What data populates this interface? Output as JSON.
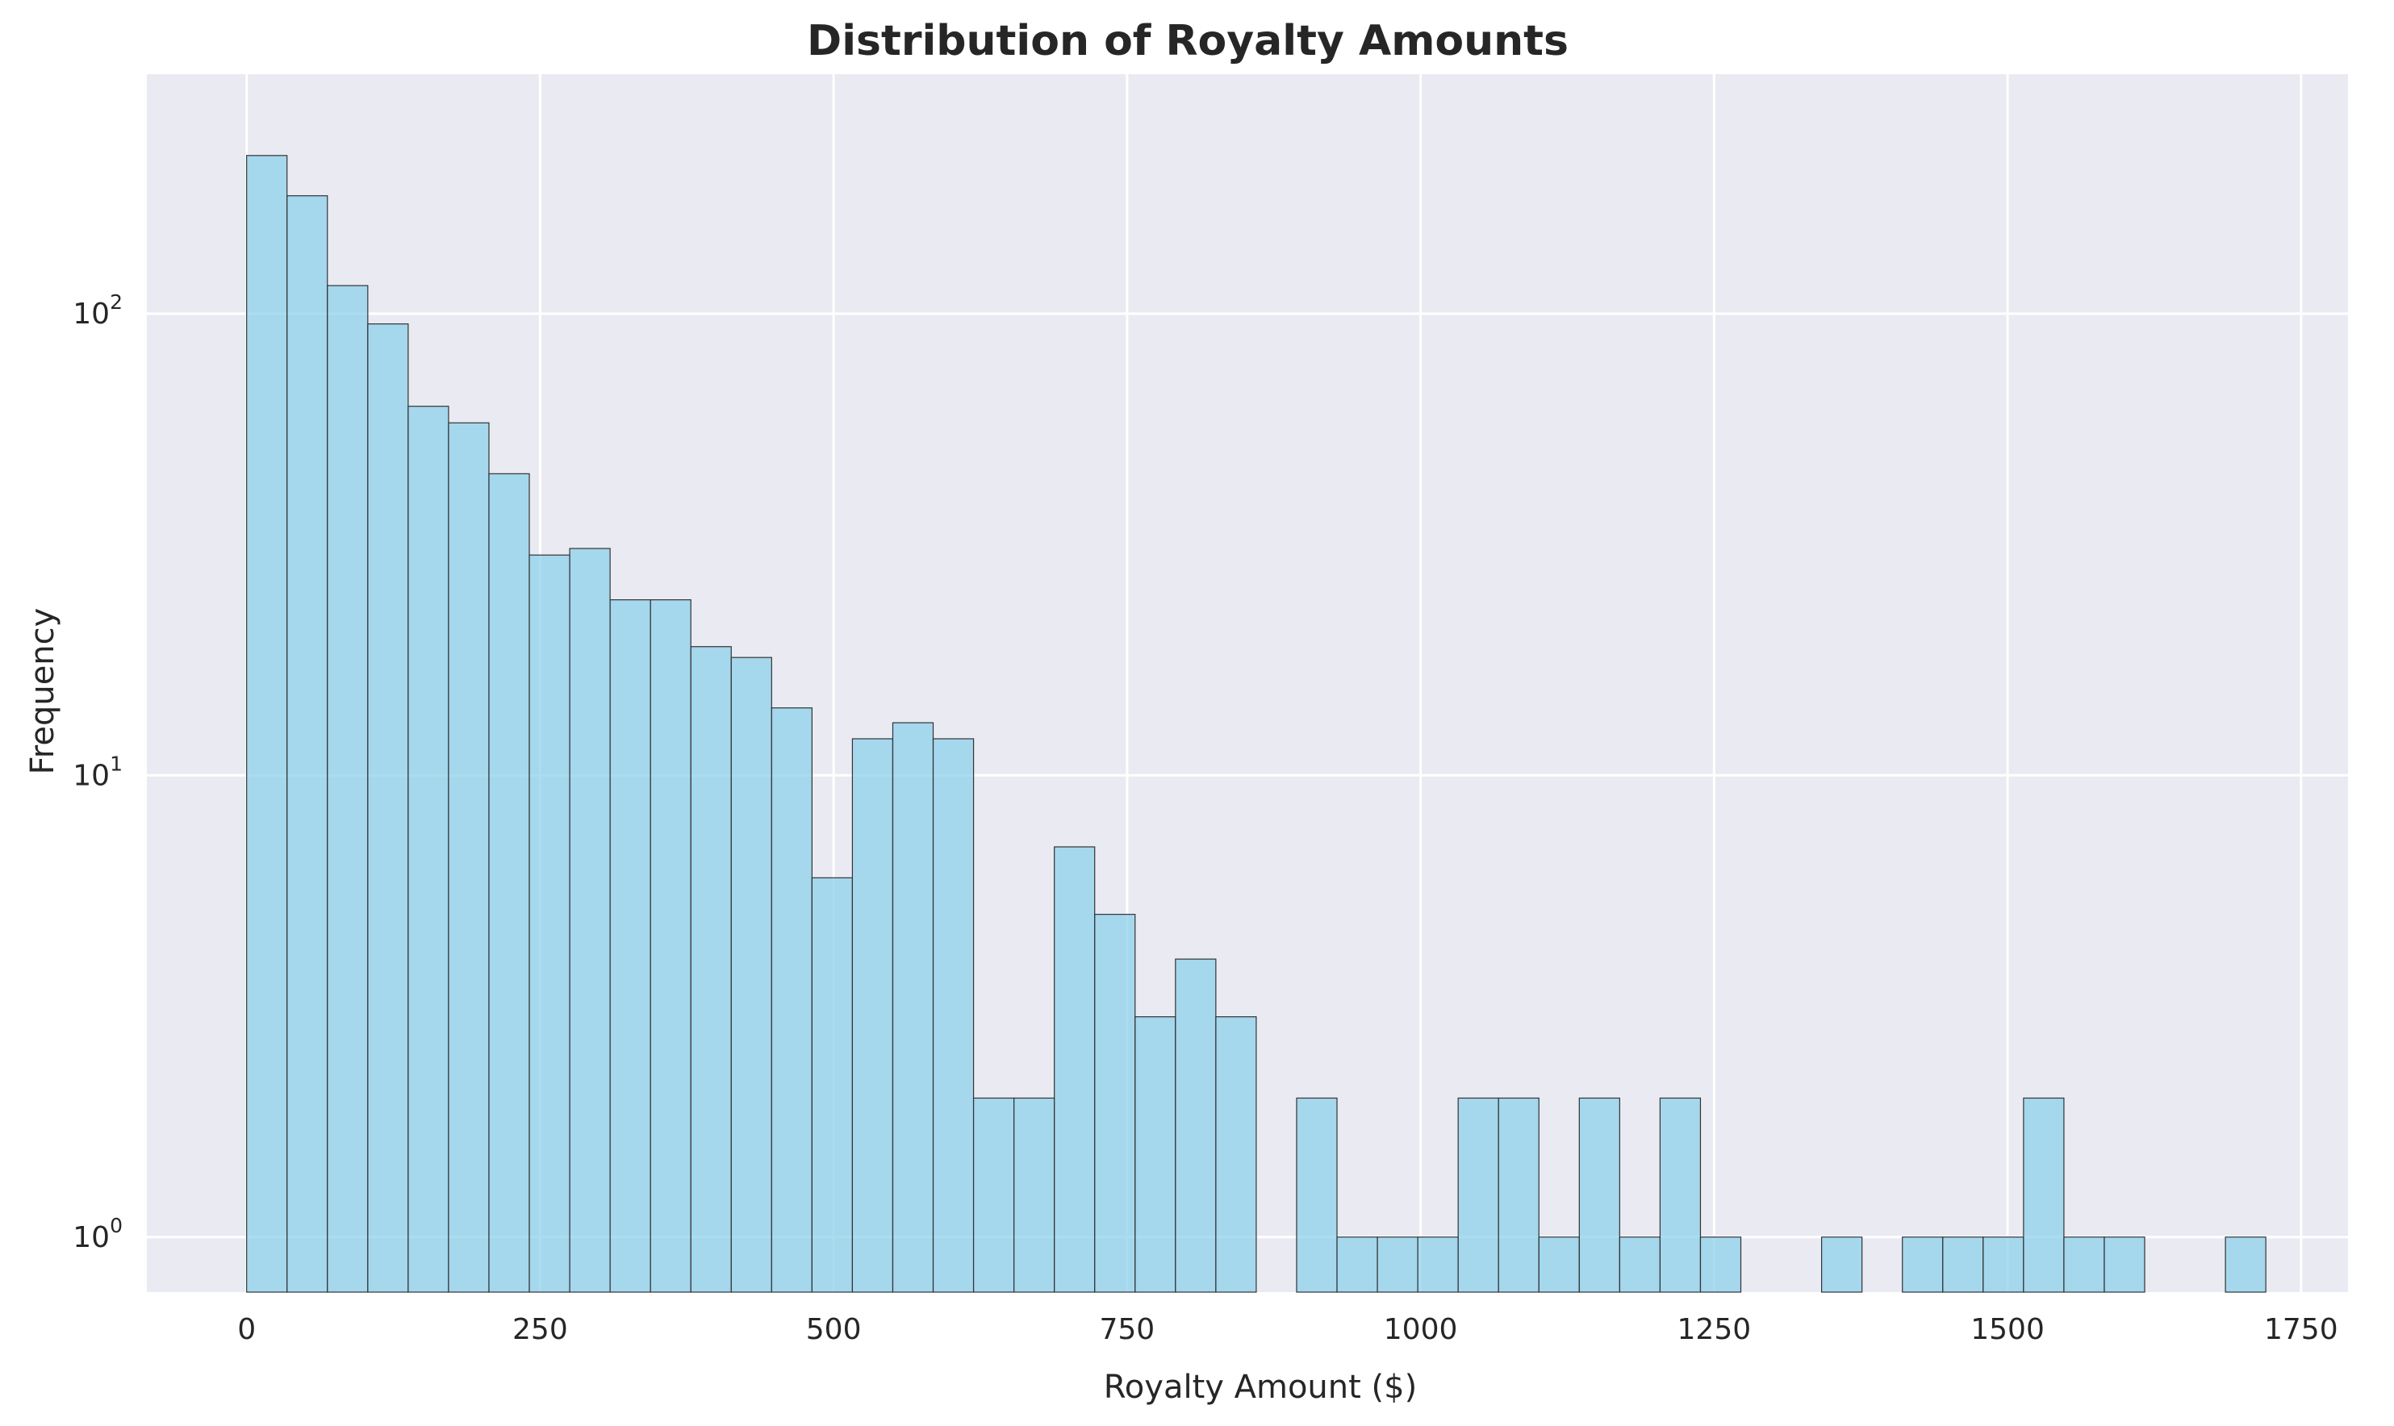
{
  "chart_data": {
    "type": "bar",
    "title": "Distribution of Royalty Amounts",
    "xlabel": "Royalty Amount ($)",
    "ylabel": "Frequency",
    "yscale": "log",
    "grid": true,
    "bar_color": "#87CEEB",
    "edge_color": "#333333",
    "background_color": "#EAEAF2",
    "xlim": [
      -85,
      1790
    ],
    "ylim": [
      0.76,
      330
    ],
    "x_ticks": [
      0,
      250,
      500,
      750,
      1000,
      1250,
      1500,
      1750
    ],
    "x_tick_labels": [
      "0",
      "250",
      "500",
      "750",
      "1000",
      "1250",
      "1500",
      "1750"
    ],
    "y_ticks": [
      1,
      10,
      100
    ],
    "y_tick_labels": [
      {
        "base": "10",
        "exp": "0"
      },
      {
        "base": "10",
        "exp": "1"
      },
      {
        "base": "10",
        "exp": "2"
      }
    ],
    "bin_start": 0,
    "bin_width": 34.4,
    "values": [
      220,
      180,
      115,
      95,
      63,
      58,
      45,
      30,
      31,
      24,
      24,
      19,
      18,
      14,
      6,
      12,
      13,
      12,
      2,
      2,
      7,
      5,
      3,
      4,
      3,
      0,
      2,
      1,
      1,
      1,
      2,
      2,
      1,
      2,
      1,
      2,
      1,
      0,
      0,
      1,
      0,
      1,
      1,
      1,
      2,
      1,
      1,
      0,
      0,
      1
    ]
  }
}
